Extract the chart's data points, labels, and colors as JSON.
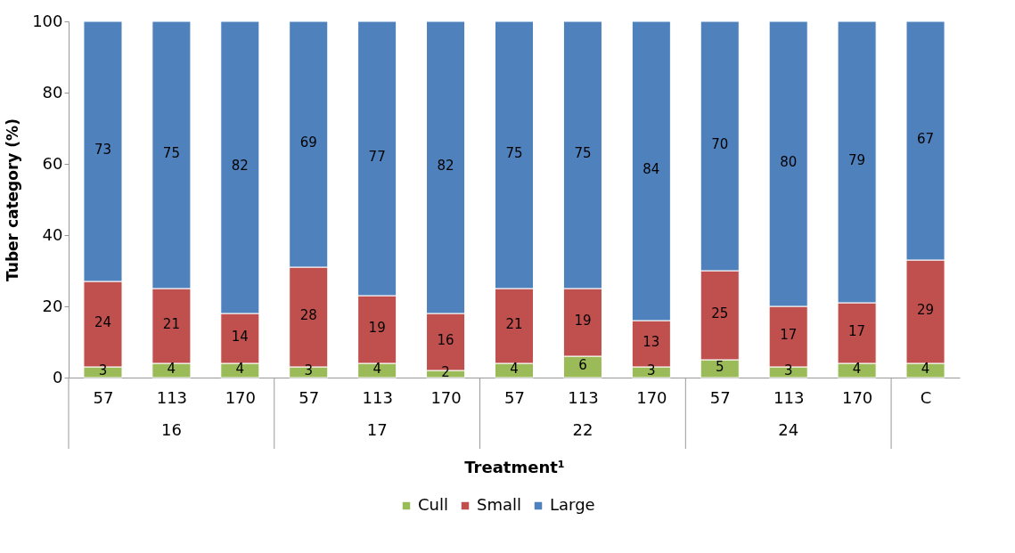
{
  "chart_data": {
    "type": "bar",
    "stacked": true,
    "xlabel": "Treatment¹",
    "ylabel": "Tuber category (%)",
    "categories": [
      "57",
      "113",
      "170",
      "57",
      "113",
      "170",
      "57",
      "113",
      "170",
      "57",
      "113",
      "170",
      "C"
    ],
    "series": [
      {
        "name": "Cull",
        "color": "#9bbb59",
        "values": [
          3,
          4,
          4,
          3,
          4,
          2,
          4,
          6,
          3,
          5,
          3,
          4,
          4
        ]
      },
      {
        "name": "Small",
        "color": "#c0504d",
        "values": [
          24,
          21,
          14,
          28,
          19,
          16,
          21,
          19,
          13,
          25,
          17,
          17,
          29
        ]
      },
      {
        "name": "Large",
        "color": "#4f81bd",
        "values": [
          73,
          75,
          82,
          69,
          77,
          82,
          75,
          75,
          84,
          70,
          80,
          79,
          67
        ]
      }
    ],
    "annotations": [
      "16",
      "17",
      "22",
      "24"
    ],
    "ylim": [
      0,
      100
    ],
    "yticks": [
      0,
      20,
      40,
      60,
      80,
      100
    ],
    "grid": false,
    "legend": "bottom",
    "data_labels": true
  }
}
